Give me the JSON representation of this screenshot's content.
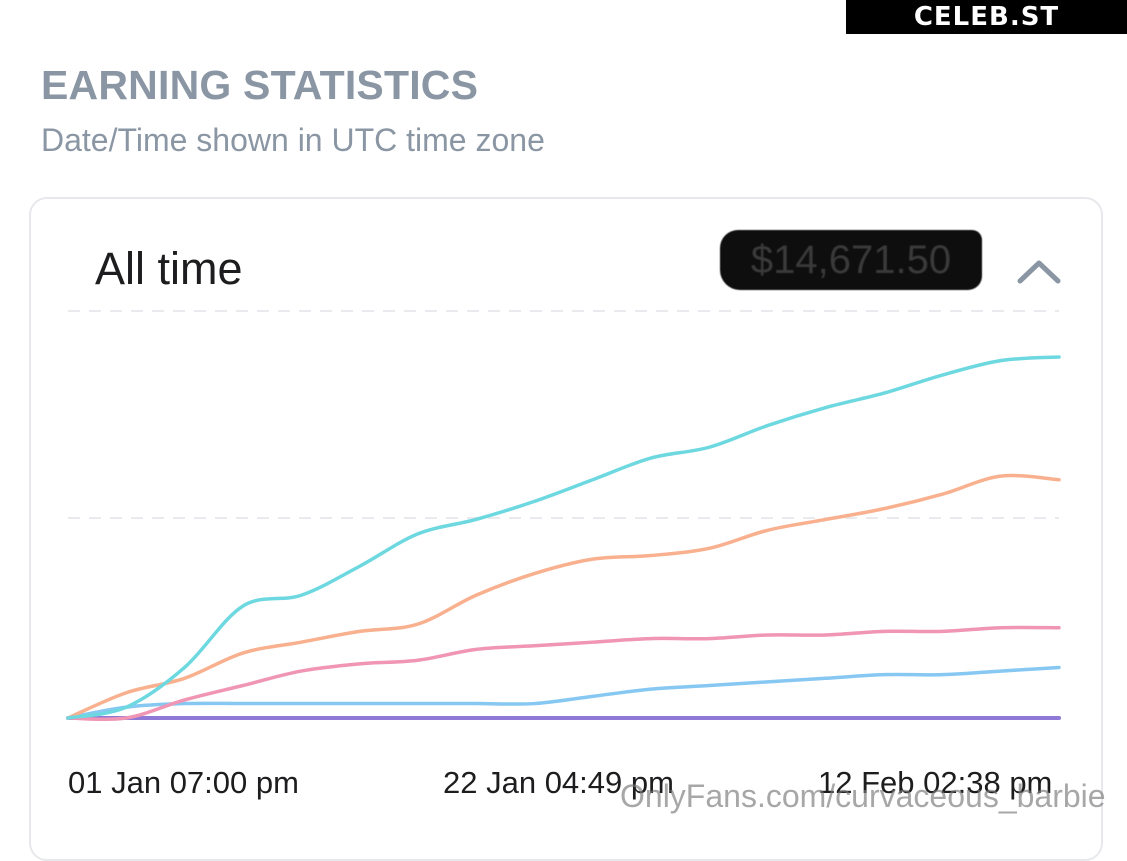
{
  "watermark_top": "CELEB.ST",
  "header": {
    "title": "EARNING STATISTICS",
    "subtitle": "Date/Time shown in UTC time zone"
  },
  "card": {
    "period_label": "All time",
    "total_amount": "$14,671.50",
    "collapse_icon": "chevron-up-icon"
  },
  "site_watermark": "OnlyFans.com/curvaceous_barbie",
  "colors": {
    "cyan": "#6dd8e0",
    "orange": "#f8b08e",
    "pink": "#f095b4",
    "blue": "#86c8f2",
    "purple": "#8e7ad6",
    "gridline": "#e8eaed"
  },
  "chart_data": {
    "type": "line",
    "x_ticks": [
      "01 Jan 07:00 pm",
      "22 Jan 04:49 pm",
      "12 Feb 02:38 pm"
    ],
    "x": [
      0,
      3,
      6,
      9,
      12,
      15,
      18,
      21,
      24,
      27,
      30,
      33,
      36,
      39,
      42,
      45,
      48,
      51
    ],
    "ylim": [
      0,
      100
    ],
    "grid": true,
    "series": [
      {
        "color": "cyan",
        "values": [
          0,
          3,
          14,
          31,
          34,
          42,
          51,
          55,
          60,
          66,
          72,
          75,
          81,
          86,
          90,
          95,
          99,
          100
        ]
      },
      {
        "color": "orange",
        "values": [
          0,
          7,
          11,
          18,
          21,
          24,
          26,
          34,
          40,
          44,
          45,
          47,
          52,
          55,
          58,
          62,
          67,
          66
        ]
      },
      {
        "color": "pink",
        "values": [
          0,
          0,
          5,
          9,
          13,
          15,
          16,
          19,
          20,
          21,
          22,
          22,
          23,
          23,
          24,
          24,
          25,
          25
        ]
      },
      {
        "color": "blue",
        "values": [
          0,
          3,
          4,
          4,
          4,
          4,
          4,
          4,
          4,
          6,
          8,
          9,
          10,
          11,
          12,
          12,
          13,
          14
        ]
      },
      {
        "color": "purple",
        "values": [
          0,
          0,
          0,
          0,
          0,
          0,
          0,
          0,
          0,
          0,
          0,
          0,
          0,
          0,
          0,
          0,
          0,
          0
        ]
      }
    ]
  }
}
